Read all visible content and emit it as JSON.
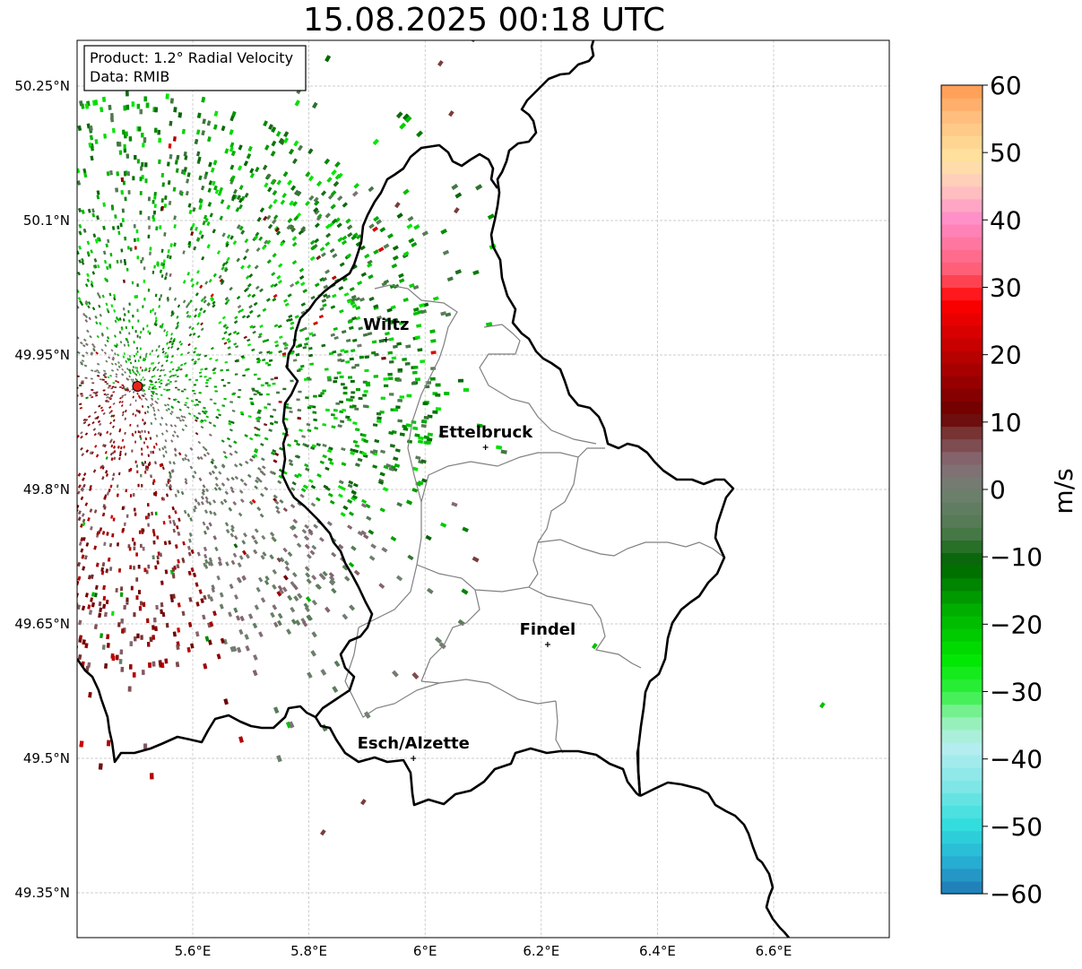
{
  "title": "15.08.2025 00:18 UTC",
  "info_box": {
    "product": "Product: 1.2° Radial Velocity",
    "source": "Data: RMIB"
  },
  "map": {
    "lon_range": [
      5.4,
      6.8
    ],
    "lat_range": [
      49.3,
      50.3
    ],
    "lon_ticks": [
      {
        "value": 5.6,
        "label": "5.6°E"
      },
      {
        "value": 5.8,
        "label": "5.8°E"
      },
      {
        "value": 6.0,
        "label": "6°E"
      },
      {
        "value": 6.2,
        "label": "6.2°E"
      },
      {
        "value": 6.4,
        "label": "6.4°E"
      },
      {
        "value": 6.6,
        "label": "6.6°E"
      }
    ],
    "lat_ticks": [
      {
        "value": 50.25,
        "label": "50.25°N"
      },
      {
        "value": 50.1,
        "label": "50.1°N"
      },
      {
        "value": 49.95,
        "label": "49.95°N"
      },
      {
        "value": 49.8,
        "label": "49.8°N"
      },
      {
        "value": 49.65,
        "label": "49.65°N"
      },
      {
        "value": 49.5,
        "label": "49.5°N"
      },
      {
        "value": 49.35,
        "label": "49.35°N"
      }
    ],
    "radar_site": {
      "lon": 5.505,
      "lat": 49.915
    },
    "cities": [
      {
        "name": "Wiltz",
        "lon": 5.933,
        "lat": 49.967
      },
      {
        "name": "Ettelbruck",
        "lon": 6.104,
        "lat": 49.847
      },
      {
        "name": "Findel",
        "lon": 6.211,
        "lat": 49.627
      },
      {
        "name": "Esch/Alzette",
        "lon": 5.98,
        "lat": 49.5
      }
    ]
  },
  "colorbar": {
    "label": "m/s",
    "min": -60,
    "max": 60,
    "ticks": [
      {
        "value": 60,
        "label": "60"
      },
      {
        "value": 50,
        "label": "50"
      },
      {
        "value": 40,
        "label": "40"
      },
      {
        "value": 30,
        "label": "30"
      },
      {
        "value": 20,
        "label": "20"
      },
      {
        "value": 10,
        "label": "10"
      },
      {
        "value": 0,
        "label": "0"
      },
      {
        "value": -10,
        "label": "−10"
      },
      {
        "value": -20,
        "label": "−20"
      },
      {
        "value": -30,
        "label": "−30"
      },
      {
        "value": -40,
        "label": "−40"
      },
      {
        "value": -50,
        "label": "−50"
      },
      {
        "value": -60,
        "label": "−60"
      }
    ],
    "stops": [
      {
        "value": -60,
        "color": "#1f77b4"
      },
      {
        "value": -55,
        "color": "#27b0d4"
      },
      {
        "value": -50,
        "color": "#2fdcdc"
      },
      {
        "value": -44,
        "color": "#7fe6e6"
      },
      {
        "value": -38,
        "color": "#b8eef0"
      },
      {
        "value": -34,
        "color": "#90f0b0"
      },
      {
        "value": -30,
        "color": "#30f040"
      },
      {
        "value": -25,
        "color": "#00e600"
      },
      {
        "value": -18,
        "color": "#00b000"
      },
      {
        "value": -11,
        "color": "#006400"
      },
      {
        "value": -6,
        "color": "#4f7a4f"
      },
      {
        "value": 0,
        "color": "#708070"
      },
      {
        "value": 4,
        "color": "#866b76"
      },
      {
        "value": 8,
        "color": "#7a3c3c"
      },
      {
        "value": 11,
        "color": "#6a0000"
      },
      {
        "value": 22,
        "color": "#cc0000"
      },
      {
        "value": 28,
        "color": "#ff0000"
      },
      {
        "value": 32,
        "color": "#ff5a6e"
      },
      {
        "value": 40,
        "color": "#ff8cc8"
      },
      {
        "value": 45,
        "color": "#ffc8c0"
      },
      {
        "value": 49,
        "color": "#ffe4a0"
      },
      {
        "value": 55,
        "color": "#ffc080"
      },
      {
        "value": 60,
        "color": "#ff9a50"
      }
    ]
  }
}
